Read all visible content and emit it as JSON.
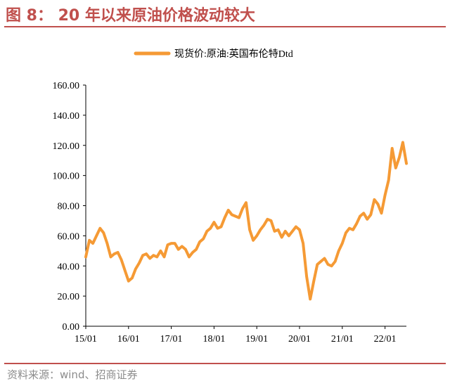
{
  "header": {
    "title": "图 8： 20 年以来原油价格波动较大"
  },
  "footer": {
    "source": "资料来源：wind、招商证券"
  },
  "colors": {
    "accent": "#c0504d",
    "series": "#f59a35",
    "source_text": "#8c8c8c"
  },
  "chart_data": {
    "type": "line",
    "title": "",
    "xlabel": "",
    "ylabel": "",
    "ylim": [
      0,
      160
    ],
    "xlim": [
      "2015-01",
      "2022-07"
    ],
    "grid": false,
    "legend_position": "top-center",
    "y_tick_labels": [
      "0.00",
      "20.00",
      "40.00",
      "60.00",
      "80.00",
      "100.00",
      "120.00",
      "140.00",
      "160.00"
    ],
    "x_tick_labels": [
      "15/01",
      "16/01",
      "17/01",
      "18/01",
      "19/01",
      "20/01",
      "21/01",
      "22/01"
    ],
    "series": [
      {
        "name": "现货价:原油:英国布伦特Dtd",
        "x": [
          "2015-01",
          "2015-02",
          "2015-03",
          "2015-04",
          "2015-05",
          "2015-06",
          "2015-07",
          "2015-08",
          "2015-09",
          "2015-10",
          "2015-11",
          "2015-12",
          "2016-01",
          "2016-02",
          "2016-03",
          "2016-04",
          "2016-05",
          "2016-06",
          "2016-07",
          "2016-08",
          "2016-09",
          "2016-10",
          "2016-11",
          "2016-12",
          "2017-01",
          "2017-02",
          "2017-03",
          "2017-04",
          "2017-05",
          "2017-06",
          "2017-07",
          "2017-08",
          "2017-09",
          "2017-10",
          "2017-11",
          "2017-12",
          "2018-01",
          "2018-02",
          "2018-03",
          "2018-04",
          "2018-05",
          "2018-06",
          "2018-07",
          "2018-08",
          "2018-09",
          "2018-10",
          "2018-11",
          "2018-12",
          "2019-01",
          "2019-02",
          "2019-03",
          "2019-04",
          "2019-05",
          "2019-06",
          "2019-07",
          "2019-08",
          "2019-09",
          "2019-10",
          "2019-11",
          "2019-12",
          "2020-01",
          "2020-02",
          "2020-03",
          "2020-04",
          "2020-05",
          "2020-06",
          "2020-07",
          "2020-08",
          "2020-09",
          "2020-10",
          "2020-11",
          "2020-12",
          "2021-01",
          "2021-02",
          "2021-03",
          "2021-04",
          "2021-05",
          "2021-06",
          "2021-07",
          "2021-08",
          "2021-09",
          "2021-10",
          "2021-11",
          "2021-12",
          "2022-01",
          "2022-02",
          "2022-03",
          "2022-04",
          "2022-05",
          "2022-06",
          "2022-07"
        ],
        "values": [
          46,
          57,
          55,
          60,
          65,
          62,
          55,
          46,
          48,
          49,
          44,
          37,
          30,
          32,
          38,
          42,
          47,
          48,
          45,
          47,
          46,
          50,
          46,
          54,
          55,
          55,
          51,
          53,
          51,
          46,
          49,
          51,
          56,
          58,
          63,
          65,
          69,
          65,
          66,
          72,
          77,
          74,
          73,
          72,
          78,
          82,
          64,
          57,
          60,
          64,
          67,
          71,
          70,
          63,
          64,
          59,
          63,
          60,
          63,
          66,
          64,
          55,
          33,
          18,
          30,
          41,
          43,
          45,
          41,
          40,
          43,
          50,
          55,
          62,
          65,
          64,
          68,
          73,
          75,
          71,
          74,
          84,
          81,
          75,
          87,
          97,
          118,
          105,
          112,
          122,
          108
        ]
      }
    ]
  }
}
